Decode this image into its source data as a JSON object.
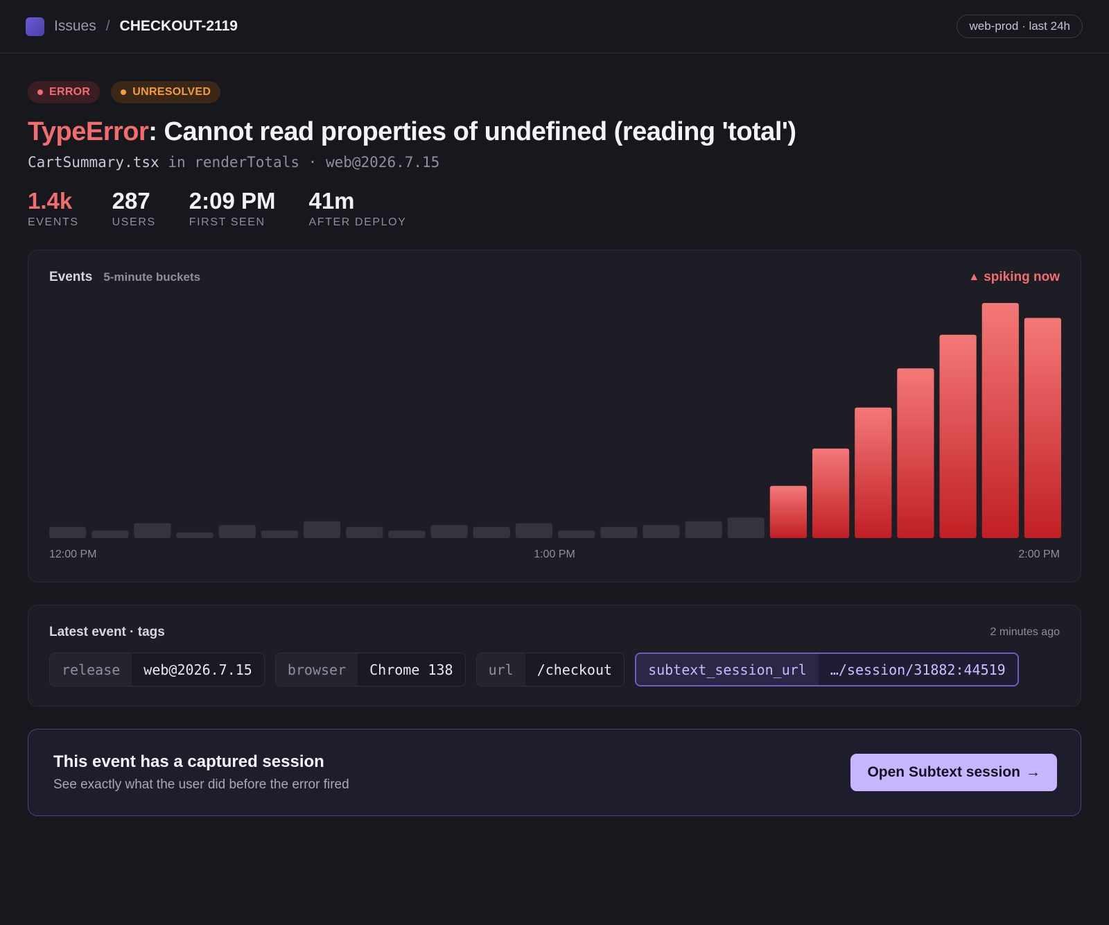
{
  "breadcrumb": {
    "issues_label": "Issues",
    "separator": "/",
    "current": "CHECKOUT-2119"
  },
  "environment_pill": "web-prod · last 24h",
  "badges": {
    "level": "ERROR",
    "status": "UNRESOLVED"
  },
  "issue": {
    "error_type": "TypeError",
    "message": ": Cannot read properties of undefined (reading 'total')",
    "file": "CartSummary.tsx",
    "in_word": "in",
    "function": "renderTotals",
    "dot": "·",
    "release": "web@2026.7.15"
  },
  "stats": [
    {
      "value": "1.4k",
      "label": "EVENTS"
    },
    {
      "value": "287",
      "label": "USERS"
    },
    {
      "value": "2:09 PM",
      "label": "FIRST SEEN"
    },
    {
      "value": "41m",
      "label": "AFTER DEPLOY"
    }
  ],
  "chart": {
    "title": "Events",
    "subtitle": "5-minute buckets",
    "alert": "spiking now",
    "alert_icon": "triangle-up-icon"
  },
  "chart_data": {
    "type": "bar",
    "title": "Events",
    "subtitle": "5-minute buckets",
    "x_tick_labels": [
      "12:00 PM",
      "1:00 PM",
      "2:00 PM"
    ],
    "values": [
      6,
      4,
      8,
      3,
      7,
      4,
      9,
      6,
      4,
      7,
      6,
      8,
      4,
      6,
      7,
      9,
      11,
      28,
      48,
      70,
      91,
      109,
      126,
      118
    ],
    "normal_color": "#34343f",
    "spike_color": "#f26d6d",
    "spike_start_index": 17,
    "grid": false,
    "legend": "none"
  },
  "tags": {
    "title": "Latest event · tags",
    "time": "2 minutes ago",
    "items": [
      {
        "key": "release",
        "value": "web@2026.7.15"
      },
      {
        "key": "browser",
        "value": "Chrome 138"
      },
      {
        "key": "url",
        "value": "/checkout"
      },
      {
        "key": "subtext_session_url",
        "value": "…/session/31882:44519"
      }
    ]
  },
  "session": {
    "title": "This event has a captured session",
    "description": "See exactly what the user did before the error fired",
    "button_label": "Open Subtext session",
    "button_icon": "arrow-right-icon"
  },
  "colors": {
    "background": "#17171e",
    "error": "#f26d6d",
    "warning": "#f29b3d",
    "accent": "#c7b5ff"
  }
}
